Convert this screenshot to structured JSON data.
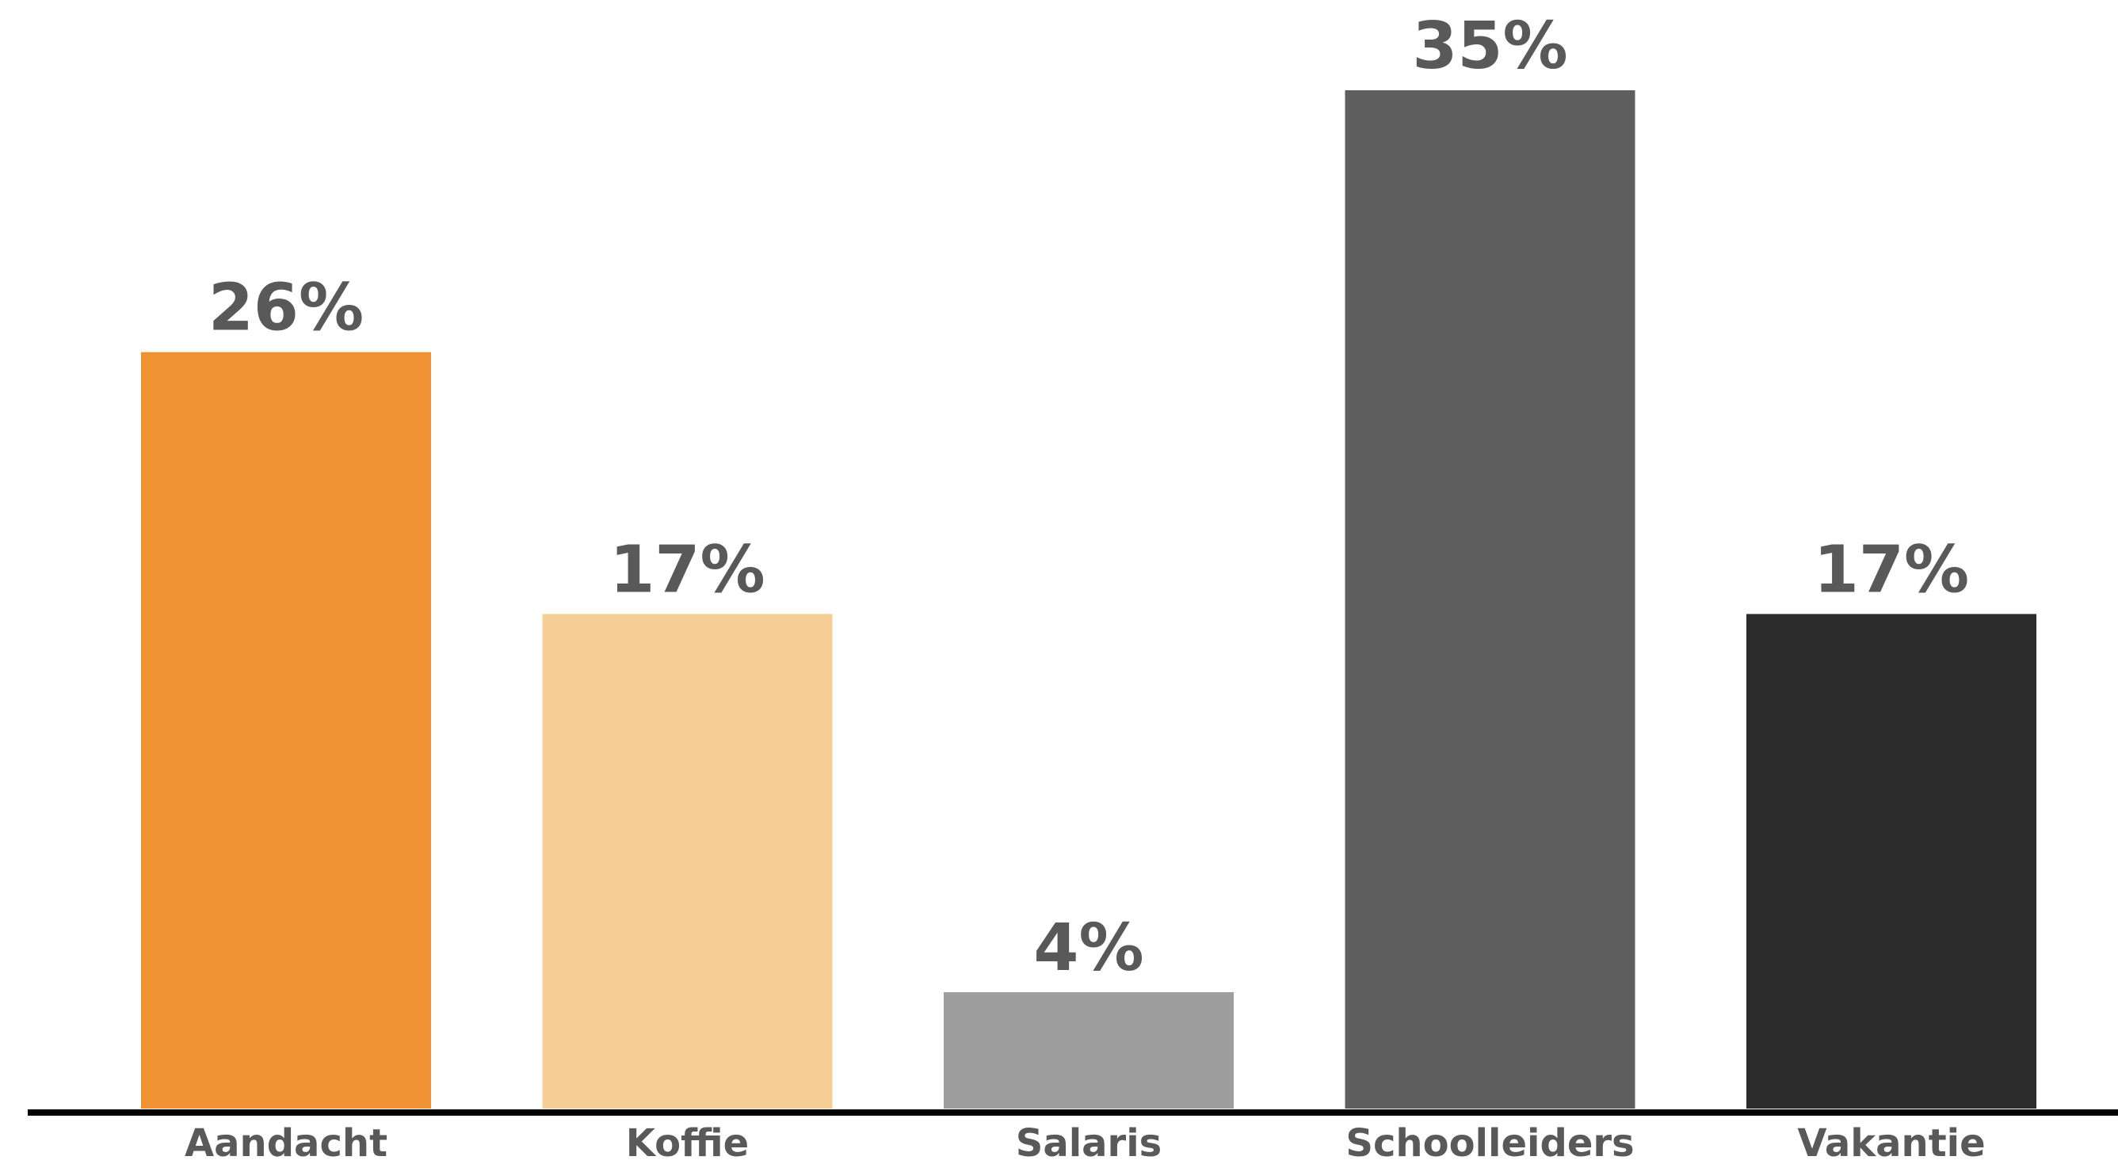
{
  "chart_data": {
    "type": "bar",
    "categories": [
      "Aandacht",
      "Koffie",
      "Salaris",
      "Schoolleiders",
      "Vakantie"
    ],
    "values": [
      26,
      17,
      4,
      35,
      17
    ],
    "data_labels": [
      "26%",
      "17%",
      "4%",
      "35%",
      "17%"
    ],
    "unit": "%",
    "colors": [
      "#F09234",
      "#F5CE95",
      "#9E9E9E",
      "#5E5E5E",
      "#2C2C2C"
    ],
    "axis_color": "#000000",
    "label_color": "#595959",
    "title": "",
    "xlabel": "",
    "ylabel": "",
    "ylim": [
      0,
      35
    ],
    "grid": false,
    "legend": "none"
  }
}
